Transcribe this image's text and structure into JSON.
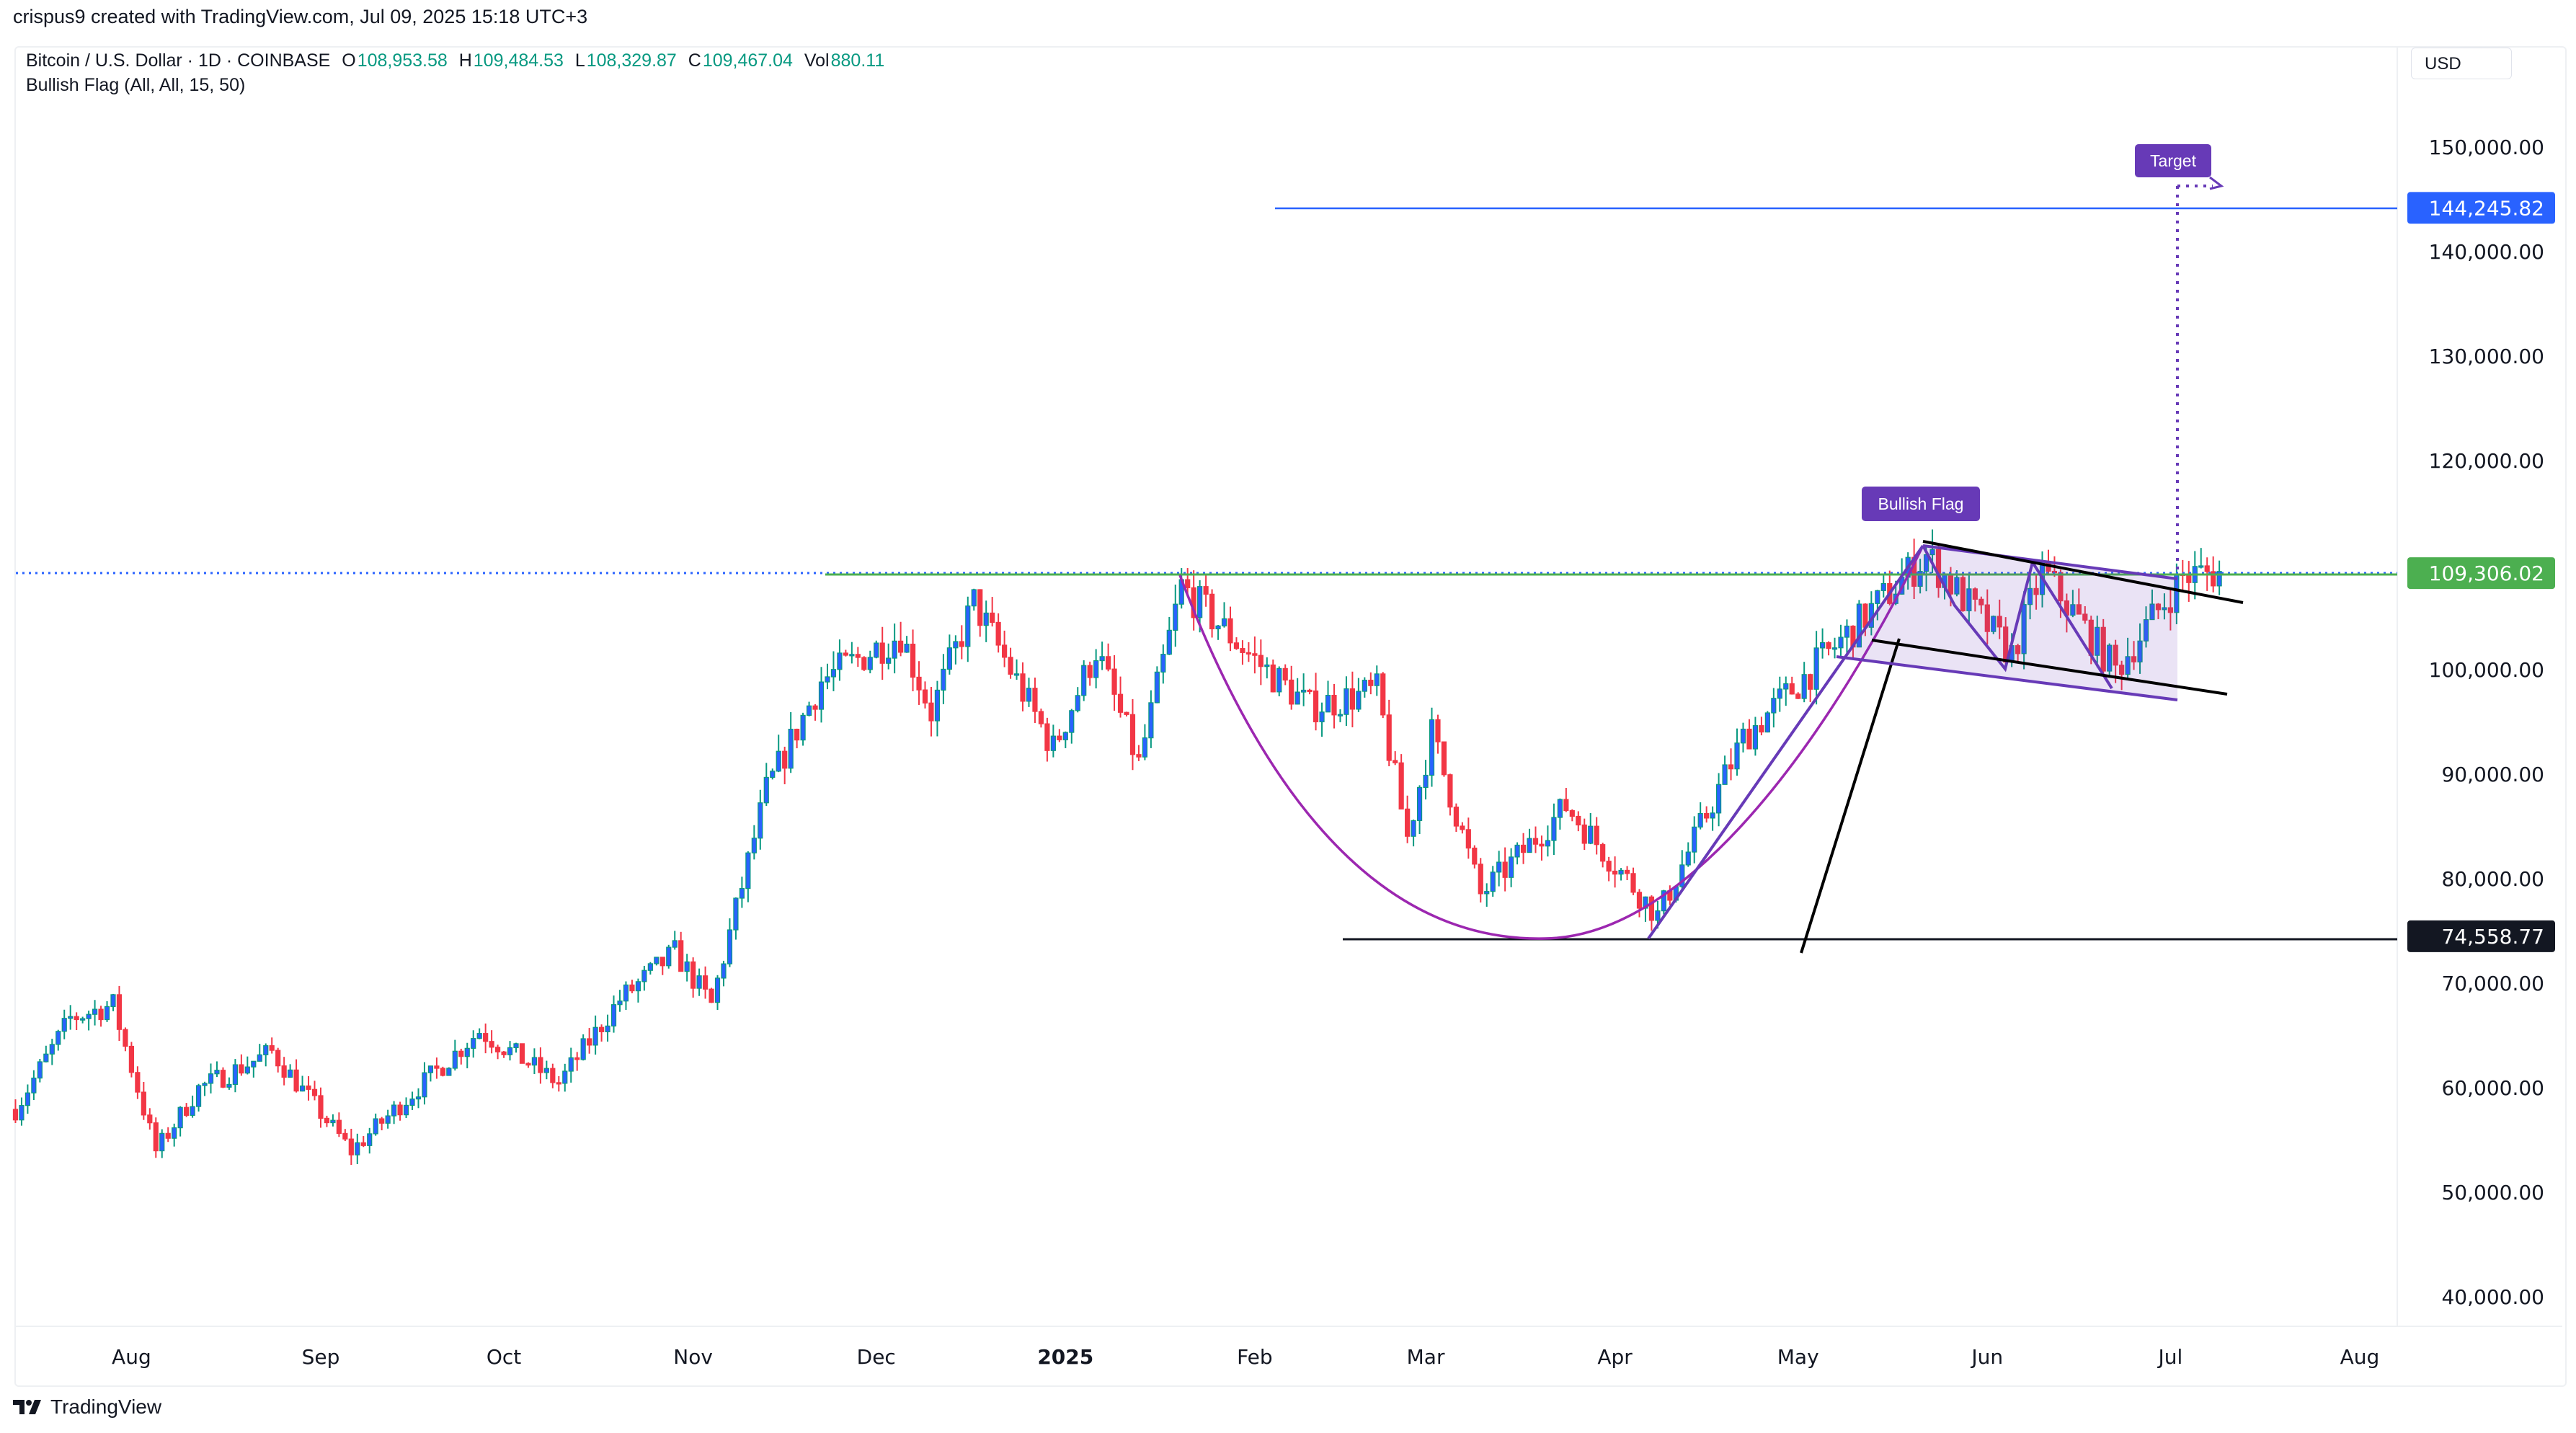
{
  "credit": "crispus9 created with TradingView.com, Jul 09, 2025 15:18 UTC+3",
  "legend": {
    "symbol": "Bitcoin / U.S. Dollar · 1D · COINBASE",
    "o_label": "O",
    "o": "108,953.58",
    "h_label": "H",
    "h": "109,484.53",
    "l_label": "L",
    "l": "108,329.87",
    "c_label": "C",
    "c": "109,467.04",
    "vol_label": "Vol",
    "vol": "880.11",
    "indicator": "Bullish Flag (All, All, 15, 50)"
  },
  "currency": "USD",
  "footer": "TradingView",
  "colors": {
    "up_body": "#2962FF",
    "up_border": "#089981",
    "down": "#F23645",
    "purple": "#673AB7",
    "green": "#4CAF50",
    "blue": "#2962FF"
  },
  "chart_data": {
    "type": "candlestick",
    "title": "Bitcoin / U.S. Dollar 1D",
    "ylim": [
      35000,
      158000
    ],
    "y_ticks": [
      "150,000.00",
      "140,000.00",
      "130,000.00",
      "120,000.00",
      "100,000.00",
      "90,000.00",
      "80,000.00",
      "70,000.00",
      "60,000.00",
      "50,000.00",
      "40,000.00"
    ],
    "y_tick_values": [
      150000,
      140000,
      130000,
      120000,
      100000,
      90000,
      80000,
      70000,
      60000,
      50000,
      40000
    ],
    "x_ticks": [
      {
        "label": "Aug",
        "date": "2024-08-01"
      },
      {
        "label": "Sep",
        "date": "2024-09-01"
      },
      {
        "label": "Oct",
        "date": "2024-10-01"
      },
      {
        "label": "Nov",
        "date": "2024-11-01"
      },
      {
        "label": "Dec",
        "date": "2024-12-01"
      },
      {
        "label": "2025",
        "date": "2025-01-01",
        "bold": true
      },
      {
        "label": "Feb",
        "date": "2025-02-01"
      },
      {
        "label": "Mar",
        "date": "2025-03-01"
      },
      {
        "label": "Apr",
        "date": "2025-04-01"
      },
      {
        "label": "May",
        "date": "2025-05-01"
      },
      {
        "label": "Jun",
        "date": "2025-06-01"
      },
      {
        "label": "Jul",
        "date": "2025-07-01"
      },
      {
        "label": "Aug",
        "date": "2025-08-01"
      }
    ],
    "close_anchors": [
      [
        "2024-07-13",
        58000
      ],
      [
        "2024-07-22",
        66700
      ],
      [
        "2024-07-29",
        68000
      ],
      [
        "2024-08-05",
        54000
      ],
      [
        "2024-08-12",
        60000
      ],
      [
        "2024-08-24",
        63500
      ],
      [
        "2024-09-06",
        54000
      ],
      [
        "2024-09-15",
        59000
      ],
      [
        "2024-09-27",
        65500
      ],
      [
        "2024-10-10",
        60500
      ],
      [
        "2024-10-20",
        68500
      ],
      [
        "2024-10-29",
        73000
      ],
      [
        "2024-11-04",
        68000
      ],
      [
        "2024-11-13",
        88500
      ],
      [
        "2024-11-22",
        99000
      ],
      [
        "2024-12-05",
        103500
      ],
      [
        "2024-12-10",
        96000
      ],
      [
        "2024-12-17",
        106500
      ],
      [
        "2024-12-30",
        92500
      ],
      [
        "2025-01-06",
        102000
      ],
      [
        "2025-01-13",
        91000
      ],
      [
        "2025-01-20",
        108000
      ],
      [
        "2025-02-01",
        101000
      ],
      [
        "2025-02-10",
        96500
      ],
      [
        "2025-02-21",
        98000
      ],
      [
        "2025-02-26",
        84000
      ],
      [
        "2025-03-02",
        94000
      ],
      [
        "2025-03-10",
        78500
      ],
      [
        "2025-03-24",
        87000
      ],
      [
        "2025-04-08",
        76500
      ],
      [
        "2025-04-22",
        93500
      ],
      [
        "2025-05-10",
        104000
      ],
      [
        "2025-05-22",
        111000
      ],
      [
        "2025-06-05",
        101500
      ],
      [
        "2025-06-10",
        109500
      ],
      [
        "2025-06-22",
        100000
      ],
      [
        "2025-07-03",
        109000
      ],
      [
        "2025-07-09",
        109467
      ]
    ],
    "price_labels": [
      {
        "value": 144245.82,
        "text": "144,245.82",
        "color": "#2962FF"
      },
      {
        "value": 109306.02,
        "text": "109,306.02",
        "color": "#4CAF50"
      },
      {
        "value": 74558.77,
        "text": "74,558.77",
        "color": "#131722"
      }
    ],
    "annotations": {
      "target": "Target",
      "flag": "Bullish Flag"
    }
  }
}
